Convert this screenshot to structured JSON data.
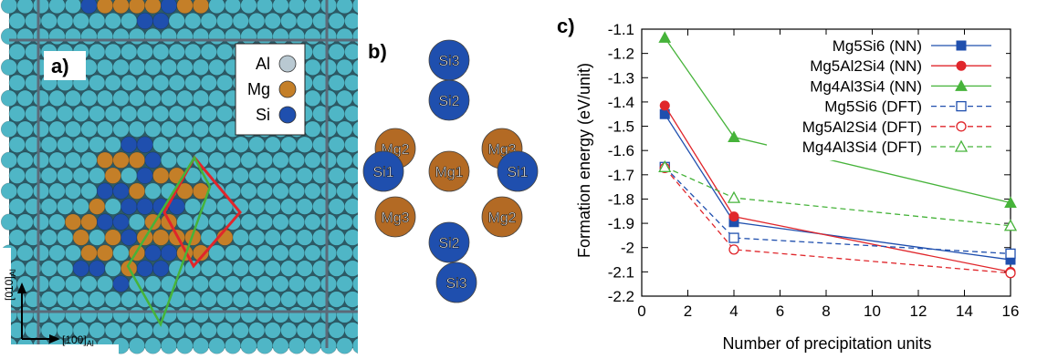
{
  "panel_a": {
    "label": "a)",
    "legend": [
      {
        "name": "Al",
        "color": "#b9c9d2"
      },
      {
        "name": "Mg",
        "color": "#c47f28"
      },
      {
        "name": "Si",
        "color": "#1f4fae"
      }
    ],
    "axis_y": {
      "text": "[010]",
      "sub": "Al"
    },
    "axis_x": {
      "text": "[100]",
      "sub": "Al"
    },
    "colors": {
      "al_atom": "#4fb6c6",
      "mg_atom": "#c47f28",
      "si_atom": "#1f4fae",
      "red_cell": "#e0262b",
      "green_cell": "#46b33a",
      "grid_line": "#5b6a78"
    }
  },
  "panel_b": {
    "label": "b)",
    "atoms": [
      {
        "name": "Si3",
        "type": "si"
      },
      {
        "name": "Si2",
        "type": "si"
      },
      {
        "name": "Mg2",
        "type": "mg"
      },
      {
        "name": "Mg3",
        "type": "mg"
      },
      {
        "name": "Si1",
        "type": "si"
      },
      {
        "name": "Mg1",
        "type": "mg"
      },
      {
        "name": "Si1",
        "type": "si"
      },
      {
        "name": "Mg3",
        "type": "mg"
      },
      {
        "name": "Mg2",
        "type": "mg"
      },
      {
        "name": "Si2",
        "type": "si"
      },
      {
        "name": "Si3",
        "type": "si"
      }
    ]
  },
  "panel_c": {
    "label": "c)",
    "chart_data": {
      "type": "line",
      "xlabel": "Number of precipitation units",
      "ylabel": "Formation energy (eV/unit)",
      "xlim": [
        0,
        16
      ],
      "ylim": [
        -2.2,
        -1.1
      ],
      "xticks": [
        0,
        2,
        4,
        6,
        8,
        10,
        12,
        14,
        16
      ],
      "yticks": [
        -1.1,
        -1.2,
        -1.3,
        -1.4,
        -1.5,
        -1.6,
        -1.7,
        -1.8,
        -1.9,
        -2,
        -2.1,
        -2.2
      ],
      "ytick_labels": [
        "-1.1",
        "-1.2",
        "-1.3",
        "-1.4",
        "-1.5",
        "-1.6",
        "-1.7",
        "-1.8",
        "-1.9",
        "-2",
        "-2.1",
        "-2.2"
      ],
      "grid": false,
      "legend_position": "top-right",
      "series": [
        {
          "name": "Mg5Si6 (NN)",
          "x": [
            1,
            4,
            16
          ],
          "y": [
            -1.45,
            -1.895,
            -2.05
          ],
          "color": "#1f4fae",
          "dash": "solid",
          "marker": "square-filled"
        },
        {
          "name": "Mg5Al2Si4 (NN)",
          "x": [
            1,
            4,
            16
          ],
          "y": [
            -1.415,
            -1.872,
            -2.1
          ],
          "color": "#e0262b",
          "dash": "solid",
          "marker": "circle-filled"
        },
        {
          "name": "Mg4Al3Si4 (NN)",
          "x": [
            1,
            4,
            16
          ],
          "y": [
            -1.135,
            -1.545,
            -1.815
          ],
          "color": "#46b33a",
          "dash": "solid",
          "marker": "triangle-filled"
        },
        {
          "name": "Mg5Si6 (DFT)",
          "x": [
            1,
            4,
            16
          ],
          "y": [
            -1.668,
            -1.96,
            -2.025
          ],
          "color": "#1f4fae",
          "dash": "dashed",
          "marker": "square-open"
        },
        {
          "name": "Mg5Al2Si4 (DFT)",
          "x": [
            1,
            4,
            16
          ],
          "y": [
            -1.672,
            -2.008,
            -2.105
          ],
          "color": "#e0262b",
          "dash": "dashed",
          "marker": "circle-open"
        },
        {
          "name": "Mg4Al3Si4 (DFT)",
          "x": [
            1,
            4,
            16
          ],
          "y": [
            -1.668,
            -1.795,
            -1.91
          ],
          "color": "#46b33a",
          "dash": "dashed",
          "marker": "triangle-open"
        }
      ]
    }
  }
}
